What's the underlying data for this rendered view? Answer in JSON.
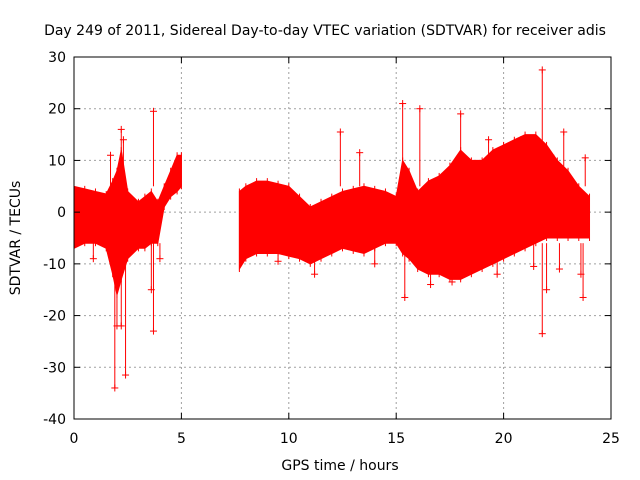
{
  "chart_data": {
    "type": "scatter",
    "title": "Day 249 of 2011, Sidereal Day-to-day VTEC variation (SDTVAR) for receiver adis",
    "xlabel": "GPS time / hours",
    "ylabel": "SDTVAR / TECUs",
    "xlim": [
      0,
      25
    ],
    "ylim": [
      -40,
      30
    ],
    "xticks": [
      0,
      5,
      10,
      15,
      20,
      25
    ],
    "xtick_labels": [
      "0",
      "5",
      "10",
      "15",
      "20",
      "25"
    ],
    "yticks": [
      -40,
      -30,
      -20,
      -10,
      0,
      10,
      20,
      30
    ],
    "ytick_labels": [
      "-40",
      "-30",
      "-20",
      "-10",
      "0",
      "10",
      "20",
      "30"
    ],
    "grid": true,
    "marker": "+",
    "color": "#ff0000",
    "series": [
      {
        "name": "SDTVAR",
        "band": {
          "x": [
            0.0,
            0.5,
            1.0,
            1.5,
            1.8,
            2.0,
            2.2,
            2.5,
            3.0,
            3.3,
            3.6,
            3.9,
            4.2,
            4.5,
            4.8,
            5.0,
            7.7,
            8.0,
            8.5,
            9.0,
            9.5,
            10.0,
            10.5,
            11.0,
            11.5,
            12.0,
            12.5,
            13.0,
            13.5,
            14.0,
            14.5,
            15.0,
            15.3,
            15.6,
            16.0,
            16.5,
            17.0,
            17.5,
            18.0,
            18.5,
            19.0,
            19.5,
            20.0,
            20.5,
            21.0,
            21.5,
            22.0,
            22.5,
            23.0,
            23.5,
            24.0
          ],
          "upper": [
            5,
            4.5,
            4,
            3.5,
            6,
            8,
            12,
            4,
            2,
            3,
            4,
            2,
            5,
            8,
            11,
            11,
            4,
            5,
            6,
            6,
            5.5,
            5,
            3,
            1,
            2,
            3,
            4,
            4.5,
            5,
            4.5,
            4,
            3,
            10,
            8,
            4,
            6,
            7,
            9,
            12,
            10,
            10,
            12,
            13,
            14,
            15,
            15,
            13,
            10,
            8,
            5,
            3
          ],
          "lower": [
            -7,
            -6,
            -6,
            -7,
            -12,
            -16,
            -13,
            -9,
            -7,
            -7,
            -6,
            -6,
            1,
            3,
            4,
            5,
            -11,
            -9,
            -8,
            -8,
            -8,
            -8.5,
            -9,
            -10,
            -9,
            -8,
            -7,
            -7.5,
            -8,
            -7,
            -6,
            -6,
            -8,
            -9,
            -11,
            -12,
            -12,
            -13,
            -13,
            -12,
            -11,
            -10,
            -9,
            -8,
            -7,
            -6,
            -5,
            -5,
            -5,
            -5,
            -5
          ]
        },
        "outliers": [
          {
            "x": 1.9,
            "y": -34
          },
          {
            "x": 2.4,
            "y": -31.5
          },
          {
            "x": 2.0,
            "y": -22
          },
          {
            "x": 2.2,
            "y": -22
          },
          {
            "x": 3.7,
            "y": 19.5
          },
          {
            "x": 3.7,
            "y": -23
          },
          {
            "x": 3.6,
            "y": -15
          },
          {
            "x": 2.2,
            "y": 16
          },
          {
            "x": 1.7,
            "y": 11
          },
          {
            "x": 2.3,
            "y": 14
          },
          {
            "x": 12.4,
            "y": 15.5
          },
          {
            "x": 13.3,
            "y": 11.5
          },
          {
            "x": 15.3,
            "y": 21
          },
          {
            "x": 15.4,
            "y": -16.5
          },
          {
            "x": 16.1,
            "y": 20
          },
          {
            "x": 16.6,
            "y": -14
          },
          {
            "x": 18.0,
            "y": 19
          },
          {
            "x": 19.3,
            "y": 14
          },
          {
            "x": 19.7,
            "y": -12
          },
          {
            "x": 20.8,
            "y": 14
          },
          {
            "x": 21.8,
            "y": 27.5
          },
          {
            "x": 21.8,
            "y": -23.5
          },
          {
            "x": 22.0,
            "y": -15
          },
          {
            "x": 22.6,
            "y": -11
          },
          {
            "x": 22.8,
            "y": 15.5
          },
          {
            "x": 23.6,
            "y": -12
          },
          {
            "x": 23.7,
            "y": -16.5
          },
          {
            "x": 23.8,
            "y": 10.5
          },
          {
            "x": 9.5,
            "y": -9.5
          },
          {
            "x": 11.2,
            "y": -12
          },
          {
            "x": 14.0,
            "y": -10
          },
          {
            "x": 17.6,
            "y": -13.5
          },
          {
            "x": 21.4,
            "y": -10.5
          },
          {
            "x": 22.2,
            "y": 11
          },
          {
            "x": 4.0,
            "y": -9
          },
          {
            "x": 0.9,
            "y": -9
          }
        ]
      }
    ]
  }
}
